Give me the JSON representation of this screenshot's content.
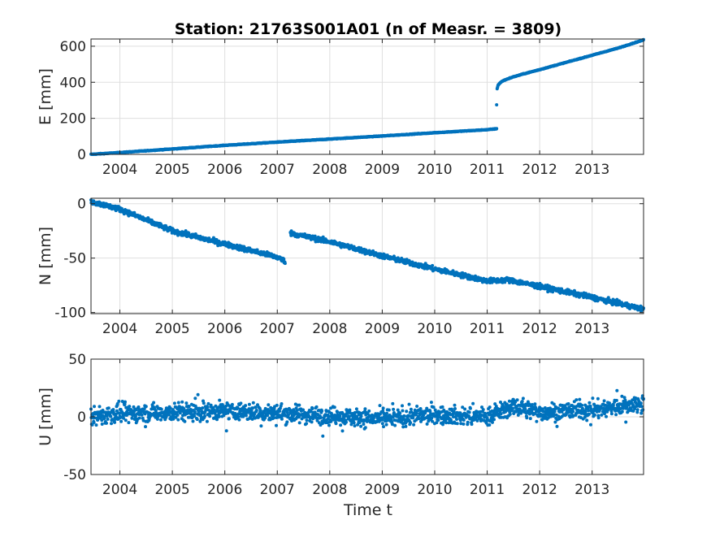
{
  "chart_data": {
    "type": "scatter",
    "title": "Station: 21763S001A01 (n of Measr. = 3809)",
    "xlabel": "Time t",
    "color": "#0072BD",
    "grid": true,
    "xlim": [
      2003.45,
      2013.98
    ],
    "xticks": [
      2004,
      2005,
      2006,
      2007,
      2008,
      2009,
      2010,
      2011,
      2012,
      2013
    ],
    "xticklabels": [
      "2004",
      "2005",
      "2006",
      "2007",
      "2008",
      "2009",
      "2010",
      "2011",
      "2012",
      "2013"
    ],
    "panels": [
      {
        "id": "E",
        "ylabel": "E [mm]",
        "ylim": [
          0,
          640
        ],
        "yticks": [
          0,
          200,
          400,
          600
        ],
        "yticklabels": [
          "0",
          "200",
          "400",
          "600"
        ],
        "series": [
          {
            "x": [
              2003.45,
              2004.0,
              2005.0,
              2006.0,
              2007.0,
              2008.0,
              2009.0,
              2010.0,
              2011.0,
              2011.18
            ],
            "y": [
              0,
              10,
              30,
              50,
              68,
              85,
              102,
              120,
              137,
              142
            ]
          },
          {
            "x": [
              2011.18
            ],
            "y": [
              275
            ]
          },
          {
            "x": [
              2011.19,
              2011.21,
              2011.25,
              2011.3,
              2011.4,
              2011.5,
              2011.7,
              2012.0,
              2012.5,
              2013.0,
              2013.5,
              2013.98
            ],
            "y": [
              365,
              385,
              398,
              408,
              420,
              430,
              447,
              470,
              510,
              550,
              590,
              635
            ]
          }
        ]
      },
      {
        "id": "N",
        "ylabel": "N [mm]",
        "ylim": [
          -101,
          5
        ],
        "yticks": [
          0,
          -50,
          -100
        ],
        "yticklabels": [
          "0",
          "-50",
          "-100"
        ],
        "series": [
          {
            "x": [
              2003.45,
              2004.0,
              2005.0,
              2006.0,
              2007.0,
              2007.15
            ],
            "y": [
              2,
              -5,
              -25,
              -37,
              -49,
              -53
            ]
          },
          {
            "x": [
              2007.25,
              2008.0,
              2009.0,
              2010.0,
              2011.0,
              2011.4,
              2012.0,
              2013.0,
              2013.98
            ],
            "y": [
              -27,
              -35,
              -48,
              -60,
              -71,
              -70,
              -76,
              -86,
              -97
            ]
          }
        ]
      },
      {
        "id": "U",
        "ylabel": "U [mm]",
        "ylim": [
          -50,
          50
        ],
        "yticks": [
          50,
          0,
          -50
        ],
        "yticklabels": [
          "50",
          "0",
          "-50"
        ],
        "series": [
          {
            "x": [
              2003.45,
              2004.0,
              2005.0,
              2006.0,
              2007.0,
              2008.0,
              2009.0,
              2010.0,
              2011.0,
              2011.5,
              2012.0,
              2013.0,
              2013.98
            ],
            "y": [
              0,
              3,
              4,
              5,
              3,
              1,
              -2,
              2,
              0,
              9,
              4,
              6,
              12
            ]
          }
        ]
      }
    ]
  }
}
